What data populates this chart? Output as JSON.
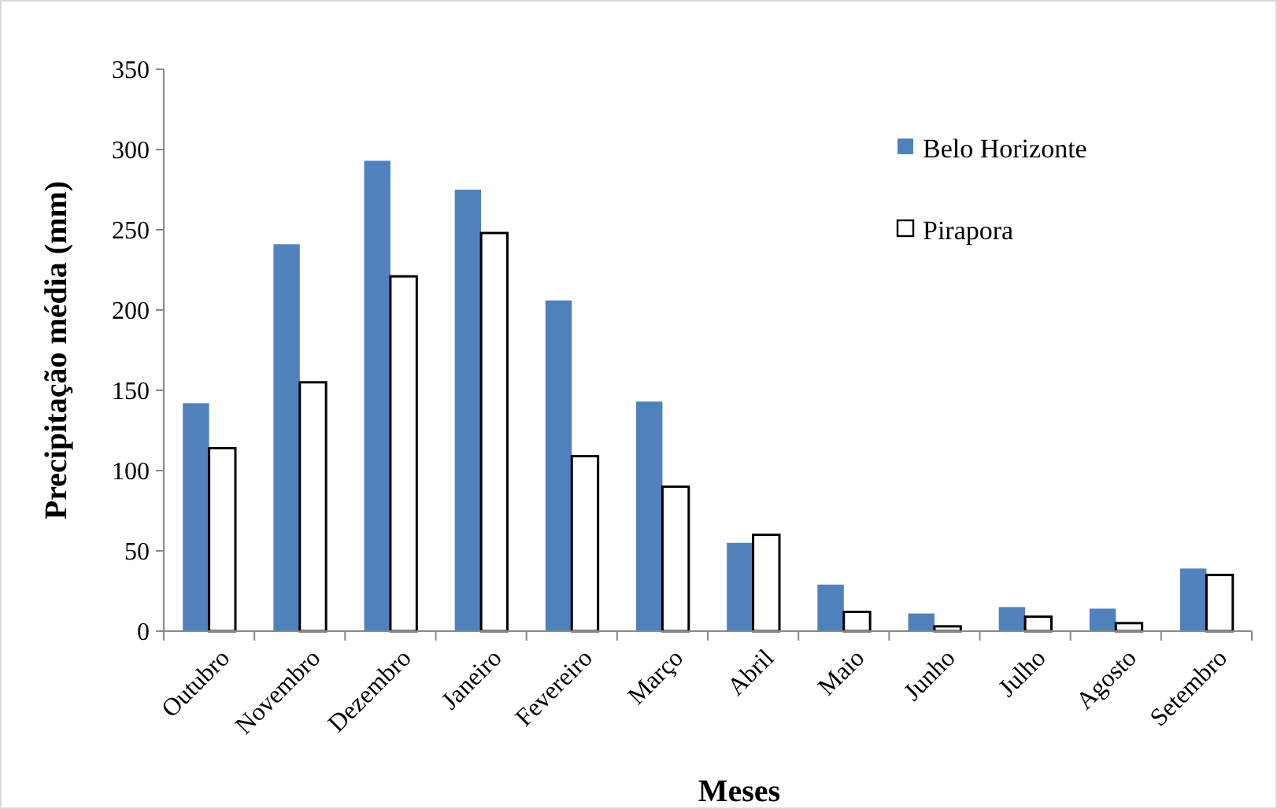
{
  "chart_data": {
    "type": "bar",
    "xlabel": "Meses",
    "ylabel": "Precipitação média (mm)",
    "categories": [
      "Outubro",
      "Novembro",
      "Dezembro",
      "Janeiro",
      "Fevereiro",
      "Março",
      "Abril",
      "Maio",
      "Junho",
      "Julho",
      "Agosto",
      "Setembro"
    ],
    "series": [
      {
        "name": "Belo Horizonte",
        "color": "#4f81bd",
        "values": [
          142,
          241,
          293,
          275,
          206,
          143,
          55,
          29,
          11,
          15,
          14,
          39
        ]
      },
      {
        "name": "Pirapora",
        "color": "#ffffff",
        "values": [
          114,
          155,
          221,
          248,
          109,
          90,
          60,
          12,
          3,
          9,
          5,
          35
        ]
      }
    ],
    "ylim": [
      0,
      350
    ],
    "yticks": [
      0,
      50,
      100,
      150,
      200,
      250,
      300,
      350
    ],
    "grid": false,
    "legend": "top right"
  }
}
